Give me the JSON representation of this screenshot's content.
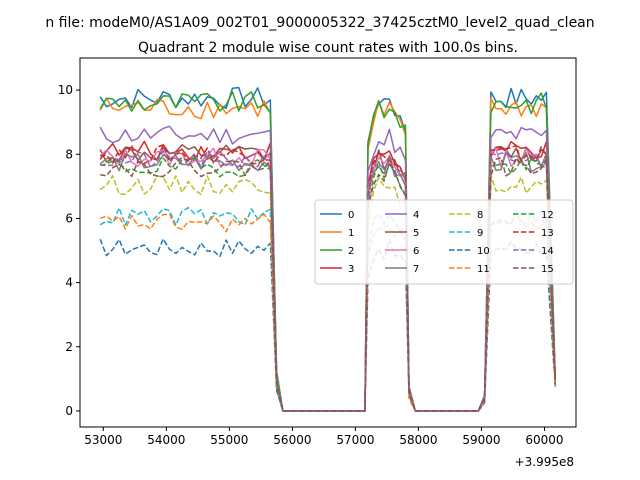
{
  "chart_data": {
    "type": "line",
    "suptitle": "n file: modeM0/AS1A09_002T01_9000005322_37425cztM0_level2_quad_clean",
    "title": "Quadrant 2 module wise count rates with 100.0s bins.",
    "xlabel": "",
    "ylabel": "",
    "x_offset_label": "+3.995e8",
    "xlim": [
      52630,
      60500
    ],
    "ylim": [
      -0.5,
      11.0
    ],
    "x_ticks": [
      53000,
      54000,
      55000,
      56000,
      57000,
      58000,
      59000,
      60000
    ],
    "x_tick_labels": [
      "53000",
      "54000",
      "55000",
      "56000",
      "57000",
      "58000",
      "59000",
      "60000"
    ],
    "y_ticks": [
      0,
      2,
      4,
      6,
      8,
      10
    ],
    "y_tick_labels": [
      "0",
      "2",
      "4",
      "6",
      "8",
      "10"
    ],
    "grid": false,
    "legend_placement": "center-right",
    "legend_columns": 4,
    "segments": [
      {
        "start": 52950,
        "count": 28
      },
      {
        "start": 57150,
        "count": 8
      },
      {
        "start": 59000,
        "count": 12
      }
    ],
    "gap_segments": [
      {
        "x": [
          55750,
          55850,
          55950,
          56050,
          56150,
          56250,
          56350,
          56450,
          56550,
          56650,
          56750,
          56850,
          56950,
          57050,
          57150
        ]
      },
      {
        "x": [
          57850,
          57950,
          58050,
          58150,
          58250,
          58350,
          58450,
          58550,
          58650,
          58750,
          58850,
          58950,
          59050
        ]
      },
      {
        "x": [
          60150,
          60170
        ]
      }
    ],
    "series": [
      {
        "name": "0",
        "color": "#1f77b4",
        "dash": "solid",
        "level": 9.75
      },
      {
        "name": "1",
        "color": "#ff7f0e",
        "dash": "solid",
        "level": 9.45
      },
      {
        "name": "2",
        "color": "#2ca02c",
        "dash": "solid",
        "level": 9.6
      },
      {
        "name": "3",
        "color": "#d62728",
        "dash": "solid",
        "level": 8.1
      },
      {
        "name": "4",
        "color": "#9467bd",
        "dash": "solid",
        "level": 8.6
      },
      {
        "name": "5",
        "color": "#8c564b",
        "dash": "solid",
        "level": 8.0
      },
      {
        "name": "6",
        "color": "#e377c2",
        "dash": "solid",
        "level": 7.9
      },
      {
        "name": "7",
        "color": "#7f7f7f",
        "dash": "solid",
        "level": 7.75
      },
      {
        "name": "8",
        "color": "#bcbd22",
        "dash": "dashed",
        "level": 7.05
      },
      {
        "name": "9",
        "color": "#17becf",
        "dash": "dashed",
        "level": 6.05
      },
      {
        "name": "10",
        "color": "#1f77b4",
        "dash": "dashed",
        "level": 5.1
      },
      {
        "name": "11",
        "color": "#ff7f0e",
        "dash": "dashed",
        "level": 5.85
      },
      {
        "name": "12",
        "color": "#2ca02c",
        "dash": "dashed",
        "level": 7.6
      },
      {
        "name": "13",
        "color": "#d62728",
        "dash": "dashed",
        "level": 8.0
      },
      {
        "name": "14",
        "color": "#9467bd",
        "dash": "dashed",
        "level": 7.8
      },
      {
        "name": "15",
        "color": "#8c564b",
        "dash": "dashed",
        "level": 7.6
      }
    ]
  }
}
